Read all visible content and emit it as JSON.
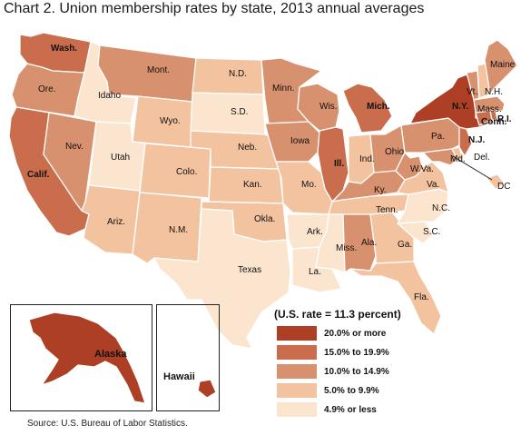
{
  "title": "Chart 2. Union membership rates by state, 2013 annual averages",
  "source": "Source: U.S. Bureau of Labor Statistics.",
  "legend": {
    "title": "(U.S. rate = 11.3 percent)",
    "classes": [
      {
        "label": "20.0% or more",
        "color": "#ad3f24"
      },
      {
        "label": "15.0% to 19.9%",
        "color": "#c96d4d"
      },
      {
        "label": "10.0% to 14.9%",
        "color": "#d8916f"
      },
      {
        "label": "5.0% to 9.9%",
        "color": "#f3c29f"
      },
      {
        "label": "4.9% or less",
        "color": "#fbe5cf"
      }
    ]
  },
  "states": [
    {
      "id": "WA",
      "label": "Wash.",
      "class": 1
    },
    {
      "id": "OR",
      "label": "Ore.",
      "class": 2
    },
    {
      "id": "CA",
      "label": "Calif.",
      "class": 1
    },
    {
      "id": "NV",
      "label": "Nev.",
      "class": 2
    },
    {
      "id": "ID",
      "label": "Idaho",
      "class": 4
    },
    {
      "id": "MT",
      "label": "Mont.",
      "class": 2
    },
    {
      "id": "WY",
      "label": "Wyo.",
      "class": 3
    },
    {
      "id": "UT",
      "label": "Utah",
      "class": 4
    },
    {
      "id": "AZ",
      "label": "Ariz.",
      "class": 3
    },
    {
      "id": "CO",
      "label": "Colo.",
      "class": 3
    },
    {
      "id": "NM",
      "label": "N.M.",
      "class": 3
    },
    {
      "id": "ND",
      "label": "N.D.",
      "class": 3
    },
    {
      "id": "SD",
      "label": "S.D.",
      "class": 4
    },
    {
      "id": "NE",
      "label": "Neb.",
      "class": 3
    },
    {
      "id": "KS",
      "label": "Kan.",
      "class": 3
    },
    {
      "id": "OK",
      "label": "Okla.",
      "class": 3
    },
    {
      "id": "TX",
      "label": "Texas",
      "class": 4
    },
    {
      "id": "MN",
      "label": "Minn.",
      "class": 2
    },
    {
      "id": "IA",
      "label": "Iowa",
      "class": 2
    },
    {
      "id": "MO",
      "label": "Mo.",
      "class": 3
    },
    {
      "id": "AR",
      "label": "Ark.",
      "class": 4
    },
    {
      "id": "LA",
      "label": "La.",
      "class": 4
    },
    {
      "id": "WI",
      "label": "Wis.",
      "class": 2
    },
    {
      "id": "IL",
      "label": "Ill.",
      "class": 1
    },
    {
      "id": "MI",
      "label": "Mich.",
      "class": 1
    },
    {
      "id": "IN",
      "label": "Ind.",
      "class": 3
    },
    {
      "id": "OH",
      "label": "Ohio",
      "class": 2
    },
    {
      "id": "KY",
      "label": "Ky.",
      "class": 2
    },
    {
      "id": "TN",
      "label": "Tenn.",
      "class": 3
    },
    {
      "id": "MS",
      "label": "Miss.",
      "class": 4
    },
    {
      "id": "AL",
      "label": "Ala.",
      "class": 2
    },
    {
      "id": "GA",
      "label": "Ga.",
      "class": 3
    },
    {
      "id": "FL",
      "label": "Fla.",
      "class": 3
    },
    {
      "id": "SC",
      "label": "S.C.",
      "class": 4
    },
    {
      "id": "NC",
      "label": "N.C.",
      "class": 4
    },
    {
      "id": "VA",
      "label": "Va.",
      "class": 3
    },
    {
      "id": "WV",
      "label": "W.Va.",
      "class": 2
    },
    {
      "id": "PA",
      "label": "Pa.",
      "class": 2
    },
    {
      "id": "NY",
      "label": "N.Y.",
      "class": 0
    },
    {
      "id": "NJ",
      "label": "N.J.",
      "class": 1
    },
    {
      "id": "DE",
      "label": "Del.",
      "class": 3
    },
    {
      "id": "MD",
      "label": "Md.",
      "class": 2
    },
    {
      "id": "DC",
      "label": "DC",
      "class": 3
    },
    {
      "id": "CT",
      "label": "Conn.",
      "class": 1
    },
    {
      "id": "RI",
      "label": "R.I.",
      "class": 1
    },
    {
      "id": "MA",
      "label": "Mass.",
      "class": 2
    },
    {
      "id": "VT",
      "label": "Vt.",
      "class": 2
    },
    {
      "id": "NH",
      "label": "N.H.",
      "class": 3
    },
    {
      "id": "ME",
      "label": "Maine",
      "class": 2
    },
    {
      "id": "AK",
      "label": "Alaska",
      "class": 0
    },
    {
      "id": "HI",
      "label": "Hawaii",
      "class": 0
    }
  ]
}
